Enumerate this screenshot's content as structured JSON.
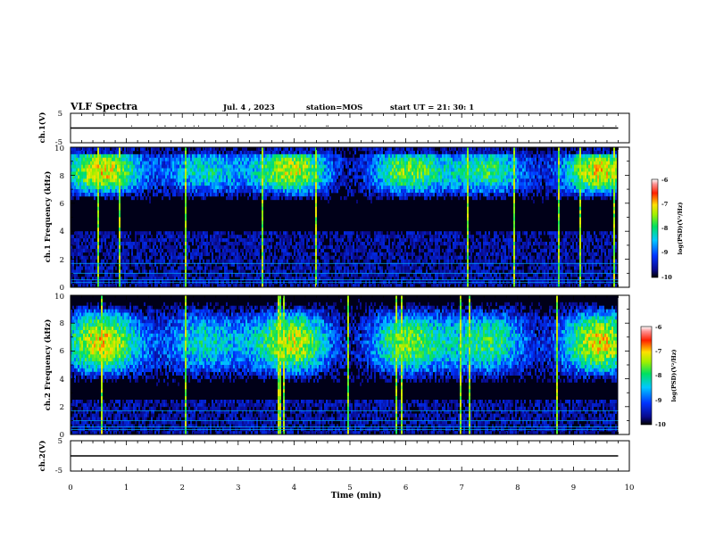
{
  "header": {
    "title": "VLF Spectra",
    "date": "Jul. 4 , 2023",
    "station": "station=MOS",
    "start_ut": "start UT = 21: 30: 1"
  },
  "chart_data": [
    {
      "type": "line",
      "name": "ch.1 waveform",
      "ylabel": "ch.1(V)",
      "ylim": [
        -5,
        5
      ],
      "yticks": [
        "5",
        "-5"
      ],
      "xlim": [
        0,
        10
      ],
      "series": [
        {
          "x": [
            0,
            9.8
          ],
          "y": [
            0,
            0
          ]
        }
      ]
    },
    {
      "type": "heatmap",
      "name": "ch.1 spectrogram",
      "ylabel": "ch.1 Frequency (kHz)",
      "ylim": [
        0,
        10
      ],
      "yticks": [
        "0",
        "2",
        "4",
        "6",
        "8",
        "10"
      ],
      "xlim": [
        0,
        10
      ],
      "band_center_khz": 8.3,
      "band_halfwidth_khz": 1.6,
      "band_floor_khz": 4.0,
      "data_end_min": 9.8,
      "colorbar": {
        "label": "log(PSD)(V²/Hz)",
        "range": [
          -10,
          -6
        ],
        "ticks": [
          "-6",
          "-7",
          "-8",
          "-9",
          "-10"
        ]
      }
    },
    {
      "type": "heatmap",
      "name": "ch.2 spectrogram",
      "ylabel": "ch.2 Frequency (kHz)",
      "ylim": [
        0,
        10
      ],
      "yticks": [
        "0",
        "2",
        "4",
        "6",
        "8",
        "10"
      ],
      "xlim": [
        0,
        10
      ],
      "band_center_khz": 6.6,
      "band_halfwidth_khz": 2.2,
      "band_floor_khz": 2.5,
      "data_end_min": 9.8,
      "colorbar": {
        "label": "log(PSD)(V²/Hz)",
        "range": [
          -10,
          -6
        ],
        "ticks": [
          "-6",
          "-7",
          "-8",
          "-9",
          "-10"
        ]
      }
    },
    {
      "type": "line",
      "name": "ch.2 waveform",
      "ylabel": "ch.2(V)",
      "ylim": [
        -5,
        5
      ],
      "yticks": [
        "5",
        "-5"
      ],
      "xlim": [
        0,
        10
      ],
      "xlabel": "Time (min)",
      "xticks": [
        "0",
        "1",
        "2",
        "3",
        "4",
        "5",
        "6",
        "7",
        "8",
        "9",
        "10"
      ],
      "series": [
        {
          "x": [
            0,
            9.8
          ],
          "y": [
            0,
            0
          ]
        }
      ]
    }
  ]
}
